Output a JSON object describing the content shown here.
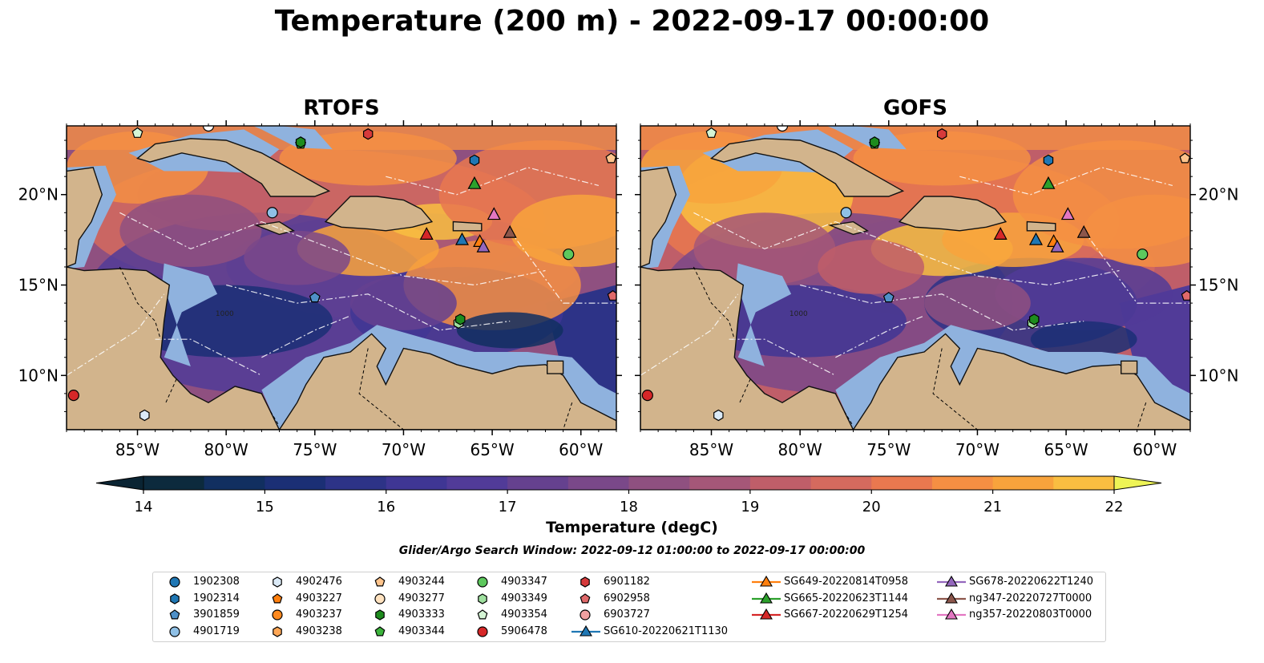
{
  "figure": {
    "title": "Temperature (200 m) - 2022-09-17 00:00:00",
    "panels": [
      {
        "title": "RTOFS"
      },
      {
        "title": "GOFS"
      }
    ],
    "lon_ticks": [
      "85°W",
      "80°W",
      "75°W",
      "70°W",
      "65°W",
      "60°W"
    ],
    "lat_ticks": [
      "20°N",
      "15°N",
      "10°N"
    ],
    "depth_label": "1000",
    "colorbar": {
      "label": "Temperature (degC)",
      "min": 14,
      "max": 22,
      "step": 0.5,
      "ticks": [
        "14",
        "15",
        "16",
        "17",
        "18",
        "19",
        "20",
        "21",
        "22"
      ],
      "colors": [
        "#0c2a3d",
        "#112f60",
        "#1b2f75",
        "#2d3387",
        "#3f3694",
        "#513b98",
        "#65418f",
        "#7a4889",
        "#8f5080",
        "#a55778",
        "#bf5e69",
        "#d56a5e",
        "#e9784f",
        "#f58f43",
        "#f8a33c",
        "#f9be41"
      ],
      "under_color": "#0a2433",
      "over_color": "#eef456"
    },
    "search_window": "Glider/Argo Search Window: 2022-09-12 01:00:00 to 2022-09-17 00:00:00",
    "colors": {
      "land": "#d2b48c",
      "shelf": "#8fb2de",
      "coast": "#111111",
      "marker_edge": "#000000"
    }
  },
  "legend": {
    "argo_columns": [
      [
        {
          "id": "1902308",
          "marker": "circle",
          "color": "#1f77b4"
        },
        {
          "id": "1902314",
          "marker": "hexagon",
          "color": "#1f77b4"
        },
        {
          "id": "3901859",
          "marker": "pentagon",
          "color": "#4f90c8"
        },
        {
          "id": "4901719",
          "marker": "circle",
          "color": "#8fc0e6"
        }
      ],
      [
        {
          "id": "4902476",
          "marker": "hexagon",
          "color": "#dbeaf7"
        },
        {
          "id": "4903227",
          "marker": "pentagon",
          "color": "#ff7f0e"
        },
        {
          "id": "4903237",
          "marker": "circle",
          "color": "#ff8a1f"
        },
        {
          "id": "4903238",
          "marker": "hexagon",
          "color": "#ffa756"
        }
      ],
      [
        {
          "id": "4903244",
          "marker": "pentagon",
          "color": "#ffc48c"
        },
        {
          "id": "4903277",
          "marker": "circle",
          "color": "#ffe2bf"
        },
        {
          "id": "4903333",
          "marker": "hexagon",
          "color": "#1e8c1e"
        },
        {
          "id": "4903344",
          "marker": "pentagon",
          "color": "#3cb43c"
        }
      ],
      [
        {
          "id": "4903347",
          "marker": "circle",
          "color": "#5dc85d"
        },
        {
          "id": "4903349",
          "marker": "hexagon",
          "color": "#9fe09f"
        },
        {
          "id": "4903354",
          "marker": "pentagon",
          "color": "#d5f5d5"
        },
        {
          "id": "5906478",
          "marker": "circle",
          "color": "#d62728"
        }
      ],
      [
        {
          "id": "6901182",
          "marker": "hexagon",
          "color": "#d63a3b"
        },
        {
          "id": "6902958",
          "marker": "pentagon",
          "color": "#e0696a"
        },
        {
          "id": "6903727",
          "marker": "circle",
          "color": "#f0a1a1"
        },
        {
          "id": "SG610-20220621T1130",
          "marker": "triangle-line",
          "color": "#1f77b4"
        }
      ]
    ],
    "glider_columns": [
      [
        {
          "id": "SG649-20220814T0958",
          "color": "#ff7f0e"
        },
        {
          "id": "SG665-20220623T1144",
          "color": "#2ca02c"
        },
        {
          "id": "SG667-20220629T1254",
          "color": "#d62728"
        }
      ],
      [
        {
          "id": "SG678-20220622T1240",
          "color": "#9467bd"
        },
        {
          "id": "ng347-20220727T0000",
          "color": "#8c564b"
        },
        {
          "id": "ng357-20220803T0000",
          "color": "#e377c2"
        }
      ]
    ]
  }
}
